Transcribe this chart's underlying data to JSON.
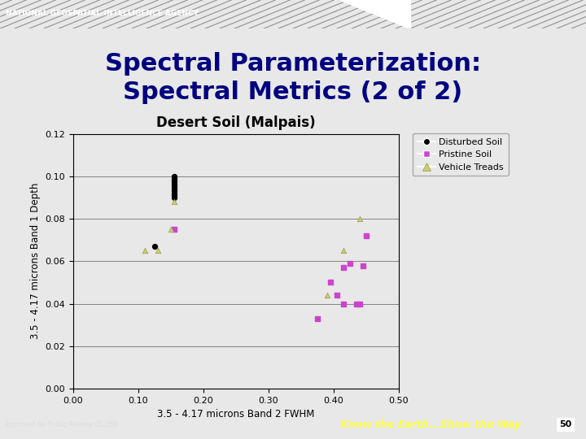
{
  "title_line1": "Spectral Parameterization:",
  "title_line2": "Spectral Metrics (2 of 2)",
  "subtitle": "Desert Soil (Malpais)",
  "xlabel": "3.5 - 4.17 microns Band 2 FWHM",
  "ylabel": "3.5 - 4.17 microns Band 1 Depth",
  "xlim": [
    0.0,
    0.5
  ],
  "ylim": [
    0.0,
    0.12
  ],
  "xticks": [
    0.0,
    0.1,
    0.2,
    0.3,
    0.4,
    0.5
  ],
  "yticks": [
    0.0,
    0.02,
    0.04,
    0.06,
    0.08,
    0.1,
    0.12
  ],
  "disturbed_soil_x": [
    0.155,
    0.155,
    0.155,
    0.155,
    0.155,
    0.155,
    0.155,
    0.155,
    0.155,
    0.155,
    0.155,
    0.125
  ],
  "disturbed_soil_y": [
    0.1,
    0.099,
    0.098,
    0.097,
    0.096,
    0.095,
    0.094,
    0.093,
    0.092,
    0.091,
    0.09,
    0.067
  ],
  "pristine_soil_x": [
    0.155,
    0.375,
    0.395,
    0.405,
    0.415,
    0.415,
    0.425,
    0.435,
    0.44,
    0.445,
    0.45
  ],
  "pristine_soil_y": [
    0.075,
    0.033,
    0.05,
    0.044,
    0.04,
    0.057,
    0.059,
    0.04,
    0.04,
    0.058,
    0.072
  ],
  "vehicle_treads_x": [
    0.11,
    0.13,
    0.15,
    0.155,
    0.39,
    0.415,
    0.44
  ],
  "vehicle_treads_y": [
    0.065,
    0.065,
    0.075,
    0.088,
    0.044,
    0.065,
    0.08
  ],
  "disturbed_color": "#000000",
  "pristine_color": "#cc44cc",
  "vehicle_color": "#cccc77",
  "bg_color": "#e8e8e8",
  "plot_bg_color": "#e8e8e8",
  "header_bg_color": "#111111",
  "header_text": "NATIONAL GEOSPATIAL-INTELLIGENCE AGENCY",
  "footer_left_text": "Approved for Public Release 05-269",
  "footer_right_text": "Know the Earth...Show the Way",
  "page_number": "50",
  "title_color": "#000080",
  "title_fontsize": 22,
  "subtitle_fontsize": 12
}
